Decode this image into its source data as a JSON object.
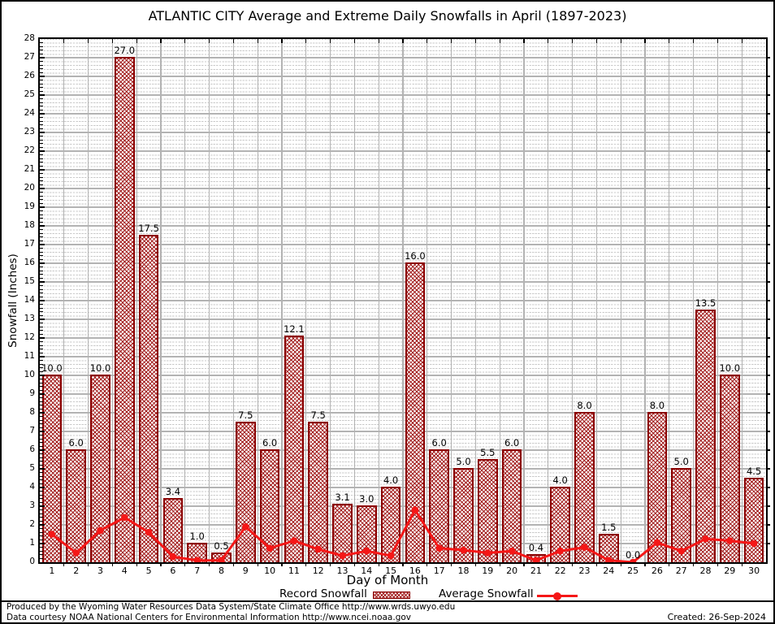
{
  "title": "ATLANTIC CITY Average and Extreme Daily Snowfalls in April (1897-2023)",
  "chart_data": {
    "type": "bar",
    "categories": [
      1,
      2,
      3,
      4,
      5,
      6,
      7,
      8,
      9,
      10,
      11,
      12,
      13,
      14,
      15,
      16,
      17,
      18,
      19,
      20,
      21,
      22,
      23,
      24,
      25,
      26,
      27,
      28,
      29,
      30
    ],
    "series": [
      {
        "name": "Record Snowfall",
        "type": "bar",
        "color": "#8b0000",
        "values": [
          10.0,
          6.0,
          10.0,
          27.0,
          17.5,
          3.4,
          1.0,
          0.5,
          7.5,
          6.0,
          12.1,
          7.5,
          3.1,
          3.0,
          4.0,
          16.0,
          6.0,
          5.0,
          5.5,
          6.0,
          0.4,
          4.0,
          8.0,
          1.5,
          0.0,
          8.0,
          5.0,
          13.5,
          10.0,
          4.5
        ]
      },
      {
        "name": "Average Snowfall",
        "type": "line",
        "color": "#f51717",
        "values": [
          1.5,
          0.5,
          1.7,
          2.4,
          1.6,
          0.3,
          0.1,
          0.1,
          1.9,
          0.75,
          1.15,
          0.7,
          0.35,
          0.6,
          0.35,
          2.8,
          0.75,
          0.65,
          0.5,
          0.6,
          0.1,
          0.6,
          0.8,
          0.1,
          0.0,
          1.05,
          0.6,
          1.25,
          1.15,
          1.0
        ]
      }
    ],
    "bar_value_labels": [
      "10.0",
      "6.0",
      "10.0",
      "27.0",
      "17.5",
      "3.4",
      "1.0",
      "0.5",
      "7.5",
      "6.0",
      "12.1",
      "7.5",
      "3.1",
      "3.0",
      "4.0",
      "16.0",
      "6.0",
      "5.0",
      "5.5",
      "6.0",
      "0.4",
      "4.0",
      "8.0",
      "1.5",
      "0.0",
      "8.0",
      "5.0",
      "13.5",
      "10.0",
      "4.5"
    ],
    "xlabel": "Day of Month",
    "ylabel": "Snowfall (Inches)",
    "ylim": [
      0,
      28
    ],
    "ytick_step": 1,
    "grid": "major and dotted minor",
    "legend_position": "bottom center"
  },
  "footer": {
    "line1": "Produced by the Wyoming Water Resources Data System/State Climate Office http://www.wrds.uwyo.edu",
    "line2": "Data courtesy NOAA National Centers for Environmental Information http://www.ncei.noaa.gov",
    "created": "Created: 26-Sep-2024"
  }
}
